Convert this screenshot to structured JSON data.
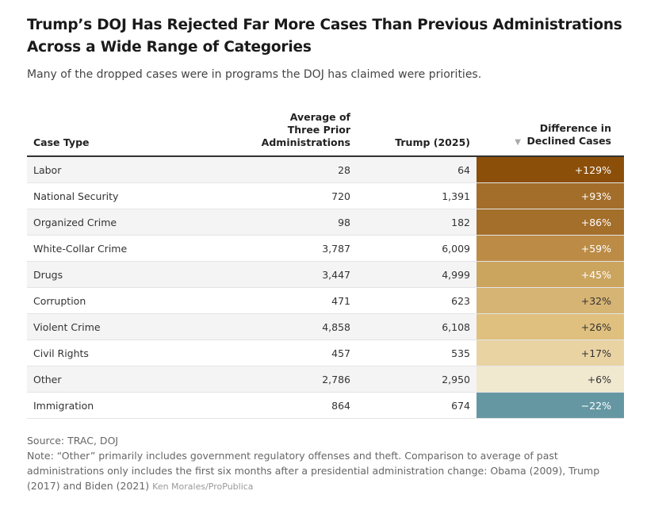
{
  "title": "Trump’s DOJ Has Rejected Far More Cases Than Previous Administrations Across a Wide Range of Categories",
  "subtitle": "Many of the dropped cases were in programs the DOJ has claimed were priorities.",
  "chart_data": {
    "type": "table",
    "columns": [
      "Case Type",
      "Average of Three Prior Administrations",
      "Trump (2025)",
      "Difference in Declined Cases"
    ],
    "sort": {
      "column": "Difference in Declined Cases",
      "direction": "descending",
      "icon": "sort-down-triangle"
    },
    "rows": [
      {
        "case": "Labor",
        "prior": "28",
        "trump": "64",
        "diff": "+129%",
        "color": "#8b4f0a",
        "text": "#ffffff"
      },
      {
        "case": "National Security",
        "prior": "720",
        "trump": "1,391",
        "diff": "+93%",
        "color": "#a36e2a",
        "text": "#ffffff"
      },
      {
        "case": "Organized Crime",
        "prior": "98",
        "trump": "182",
        "diff": "+86%",
        "color": "#a46e2b",
        "text": "#ffffff"
      },
      {
        "case": "White-Collar Crime",
        "prior": "3,787",
        "trump": "6,009",
        "diff": "+59%",
        "color": "#bc8c46",
        "text": "#ffffff"
      },
      {
        "case": "Drugs",
        "prior": "3,447",
        "trump": "4,999",
        "diff": "+45%",
        "color": "#cba45e",
        "text": "#ffffff"
      },
      {
        "case": "Corruption",
        "prior": "471",
        "trump": "623",
        "diff": "+32%",
        "color": "#d6b474",
        "text": "#333333"
      },
      {
        "case": "Violent Crime",
        "prior": "4,858",
        "trump": "6,108",
        "diff": "+26%",
        "color": "#e0c07e",
        "text": "#333333"
      },
      {
        "case": "Civil Rights",
        "prior": "457",
        "trump": "535",
        "diff": "+17%",
        "color": "#e9d3a3",
        "text": "#333333"
      },
      {
        "case": "Other",
        "prior": "2,786",
        "trump": "2,950",
        "diff": "+6%",
        "color": "#f0e8cf",
        "text": "#333333"
      },
      {
        "case": "Immigration",
        "prior": "864",
        "trump": "674",
        "diff": "−22%",
        "color": "#6597a3",
        "text": "#ffffff"
      }
    ]
  },
  "footer": {
    "source": "Source: TRAC, DOJ",
    "note": "Note: “Other” primarily includes government regulatory offenses and theft. Comparison to average of past administrations only includes the first six months after a presidential administration change: Obama (2009), Trump (2017) and Biden (2021)",
    "credit": "Ken Morales/ProPublica"
  }
}
